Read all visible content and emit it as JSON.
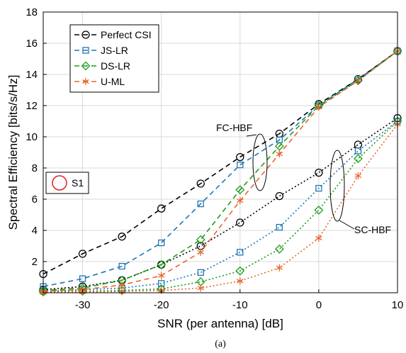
{
  "chart_data": {
    "type": "line",
    "title": "",
    "xlabel": "SNR (per antenna) [dB]",
    "ylabel": "Spectral Efficiency [bits/s/Hz]",
    "xlim": [
      -35,
      10
    ],
    "ylim": [
      0,
      18
    ],
    "xticks": [
      -30,
      -20,
      -10,
      0,
      10
    ],
    "yticks": [
      2,
      4,
      6,
      8,
      10,
      12,
      14,
      16,
      18
    ],
    "grid": true,
    "legend_position": "top-left",
    "x": [
      -35,
      -30,
      -25,
      -20,
      -15,
      -10,
      -5,
      0,
      5,
      10
    ],
    "series": [
      {
        "name": "Perfect CSI",
        "color": "#000000",
        "marker": "circle",
        "groups": {
          "FC-HBF": [
            1.2,
            2.5,
            3.6,
            5.4,
            7.0,
            8.7,
            10.2,
            12.1,
            13.7,
            15.5
          ],
          "SC-HBF": [
            0.2,
            0.4,
            0.8,
            1.8,
            3.0,
            4.5,
            6.2,
            7.7,
            9.5,
            11.2
          ]
        }
      },
      {
        "name": "JS-LR",
        "color": "#1f77b4",
        "marker": "square",
        "groups": {
          "FC-HBF": [
            0.4,
            0.9,
            1.7,
            3.2,
            5.7,
            8.2,
            9.8,
            12.0,
            13.7,
            15.5
          ],
          "SC-HBF": [
            0.1,
            0.2,
            0.3,
            0.6,
            1.3,
            2.6,
            4.2,
            6.7,
            9.1,
            11.0
          ]
        }
      },
      {
        "name": "DS-LR",
        "color": "#1a9c1a",
        "marker": "diamond",
        "groups": {
          "FC-HBF": [
            0.15,
            0.3,
            0.8,
            1.8,
            3.4,
            6.6,
            9.4,
            12.0,
            13.6,
            15.5
          ],
          "SC-HBF": [
            0.05,
            0.1,
            0.15,
            0.25,
            0.7,
            1.4,
            2.8,
            5.3,
            8.6,
            11.0
          ]
        }
      },
      {
        "name": "U-ML",
        "color": "#e8652b",
        "marker": "star",
        "groups": {
          "FC-HBF": [
            0.1,
            0.2,
            0.5,
            1.1,
            2.6,
            5.9,
            8.9,
            11.9,
            13.6,
            15.5
          ],
          "SC-HBF": [
            0.02,
            0.05,
            0.08,
            0.15,
            0.3,
            0.75,
            1.6,
            3.5,
            7.5,
            10.8
          ]
        }
      }
    ],
    "annotations": [
      {
        "text": "FC-HBF"
      },
      {
        "text": "SC-HBF"
      },
      {
        "text": "S1"
      }
    ],
    "caption": "(a)"
  }
}
